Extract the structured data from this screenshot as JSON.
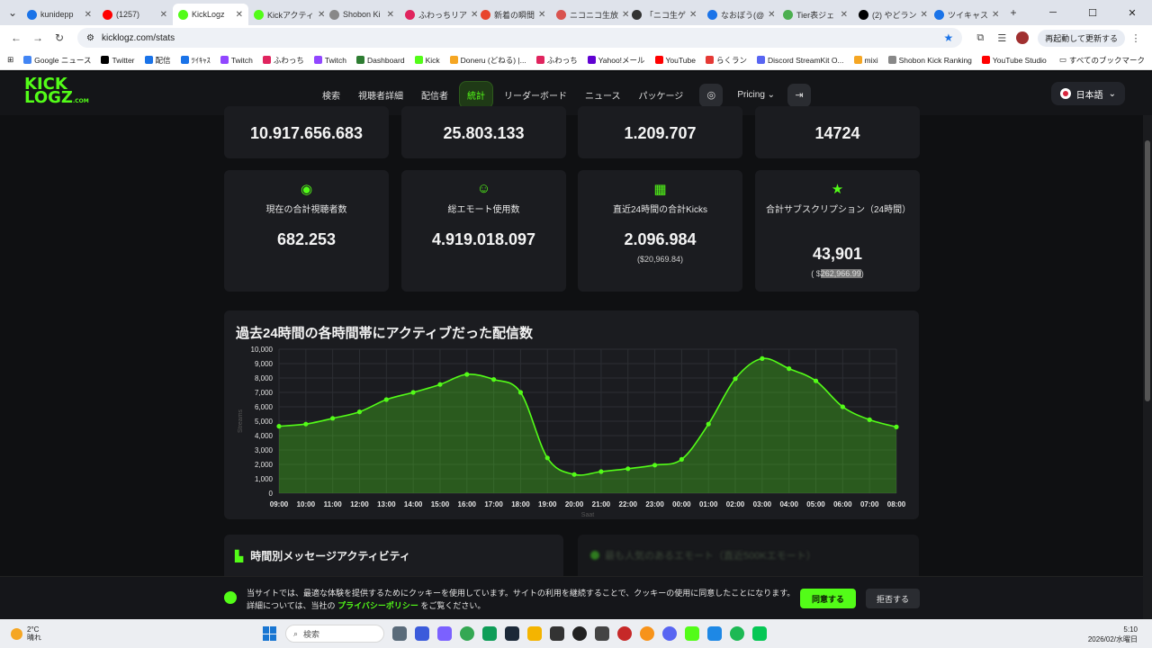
{
  "browser": {
    "tabs": [
      {
        "label": "kunidepp",
        "color": "#1a73e8"
      },
      {
        "label": "(1257)",
        "color": "#ff0000"
      },
      {
        "label": "KickLogz",
        "color": "#53fc18",
        "active": true
      },
      {
        "label": "Kickアクティ",
        "color": "#53fc18"
      },
      {
        "label": "Shobon Ki",
        "color": "#888888"
      },
      {
        "label": "ふわっちリア",
        "color": "#e0245e"
      },
      {
        "label": "新着の瞬間",
        "color": "#e8452c"
      },
      {
        "label": "ニコニコ生放",
        "color": "#d9534f"
      },
      {
        "label": "「ニコ生ゲ",
        "color": "#333333"
      },
      {
        "label": "なおぼう(@",
        "color": "#1a73e8"
      },
      {
        "label": "Tier表ジェ",
        "color": "#4caf50"
      },
      {
        "label": "(2) やどラン",
        "color": "#000000"
      },
      {
        "label": "ツイキャス",
        "color": "#1a73e8"
      }
    ],
    "url": "kicklogz.com/stats",
    "sync_label": "再起動して更新する",
    "bookmarks": [
      {
        "label": "Google ニュース",
        "color": "#4285f4"
      },
      {
        "label": "Twitter",
        "color": "#000000"
      },
      {
        "label": "配信",
        "color": "#1a73e8"
      },
      {
        "label": "ﾂｲｷｬｽ",
        "color": "#1a73e8"
      },
      {
        "label": "Twitch",
        "color": "#9146ff"
      },
      {
        "label": "ふわっち",
        "color": "#e0245e"
      },
      {
        "label": "Twitch",
        "color": "#9146ff"
      },
      {
        "label": "Dashboard",
        "color": "#2e7d32"
      },
      {
        "label": "Kick",
        "color": "#53fc18"
      },
      {
        "label": "Doneru (どねる) |...",
        "color": "#f5a623"
      },
      {
        "label": "ふわっち",
        "color": "#e0245e"
      },
      {
        "label": "Yahoo!メール",
        "color": "#6001d2"
      },
      {
        "label": "YouTube",
        "color": "#ff0000"
      },
      {
        "label": "らくラン",
        "color": "#e53935"
      },
      {
        "label": "Discord StreamKit O...",
        "color": "#5865f2"
      },
      {
        "label": "mixi",
        "color": "#f5a623"
      },
      {
        "label": "Shobon Kick Ranking",
        "color": "#888888"
      },
      {
        "label": "YouTube Studio",
        "color": "#ff0000"
      }
    ],
    "bookmarks_all": "すべてのブックマーク"
  },
  "site": {
    "logo_line1": "KICK",
    "logo_line2": "LOGZ",
    "logo_suffix": ".COM",
    "nav": [
      "検索",
      "視聴者詳細",
      "配信者",
      "統計",
      "リーダーボード",
      "ニュース",
      "パッケージ"
    ],
    "pricing": "Pricing",
    "language": "日本語"
  },
  "stats_top": [
    "10.917.656.683",
    "25.803.133",
    "1.209.707",
    "14724"
  ],
  "stats": [
    {
      "icon": "eye-icon",
      "glyph": "◉",
      "label": "現在の合計視聴者数",
      "value": "682.253",
      "sub": ""
    },
    {
      "icon": "smile-icon",
      "glyph": "☺",
      "label": "総エモート使用数",
      "value": "4.919.018.097",
      "sub": ""
    },
    {
      "icon": "gift-icon",
      "glyph": "▦",
      "label": "直近24時間の合計Kicks",
      "value": "2.096.984",
      "sub": "($20,969.84)"
    },
    {
      "icon": "star-icon",
      "glyph": "★",
      "label": "合計サブスクリプション（24時間）",
      "value": "43,901",
      "sub_pre": "( $",
      "sub_sel": "262,966.99",
      "sub_post": ")"
    }
  ],
  "chart_title": "過去24時間の各時間帯にアクティブだった配信数",
  "chart_data": {
    "type": "area",
    "title": "",
    "xlabel": "Saat",
    "ylabel": "Streams",
    "ylim": [
      0,
      10000
    ],
    "yticks": [
      "0",
      "1,000",
      "2,000",
      "3,000",
      "4,000",
      "5,000",
      "6,000",
      "7,000",
      "8,000",
      "9,000",
      "10,000"
    ],
    "x": [
      "09:00",
      "10:00",
      "11:00",
      "12:00",
      "13:00",
      "14:00",
      "15:00",
      "16:00",
      "17:00",
      "18:00",
      "19:00",
      "20:00",
      "21:00",
      "22:00",
      "23:00",
      "00:00",
      "01:00",
      "02:00",
      "03:00",
      "04:00",
      "05:00",
      "06:00",
      "07:00",
      "08:00"
    ],
    "values": [
      4650,
      4800,
      5200,
      5650,
      6500,
      7000,
      7550,
      8250,
      7900,
      7000,
      2450,
      1300,
      1500,
      1700,
      1950,
      2350,
      4800,
      7950,
      9350,
      8650,
      7800,
      6000,
      5100,
      4600
    ],
    "color": "#53fc18",
    "grid": true
  },
  "message_activity_title": "時間別メッセージアクティビティ",
  "emote_title": "最も人気のあるエモート（直近500Kエモート）",
  "cookie": {
    "text_pre": "当サイトでは、最適な体験を提供するためにクッキーを使用しています。サイトの利用を継続することで、クッキーの使用に同意したことになります。詳細については、当社の ",
    "link": "プライバシーポリシー",
    "text_post": " をご覧ください。",
    "accept": "同意する",
    "reject": "拒否する"
  },
  "taskbar": {
    "temp": "2°C",
    "weather": "晴れ",
    "search": "検索",
    "time": "5:10",
    "date": "2026/02/水曜日"
  }
}
